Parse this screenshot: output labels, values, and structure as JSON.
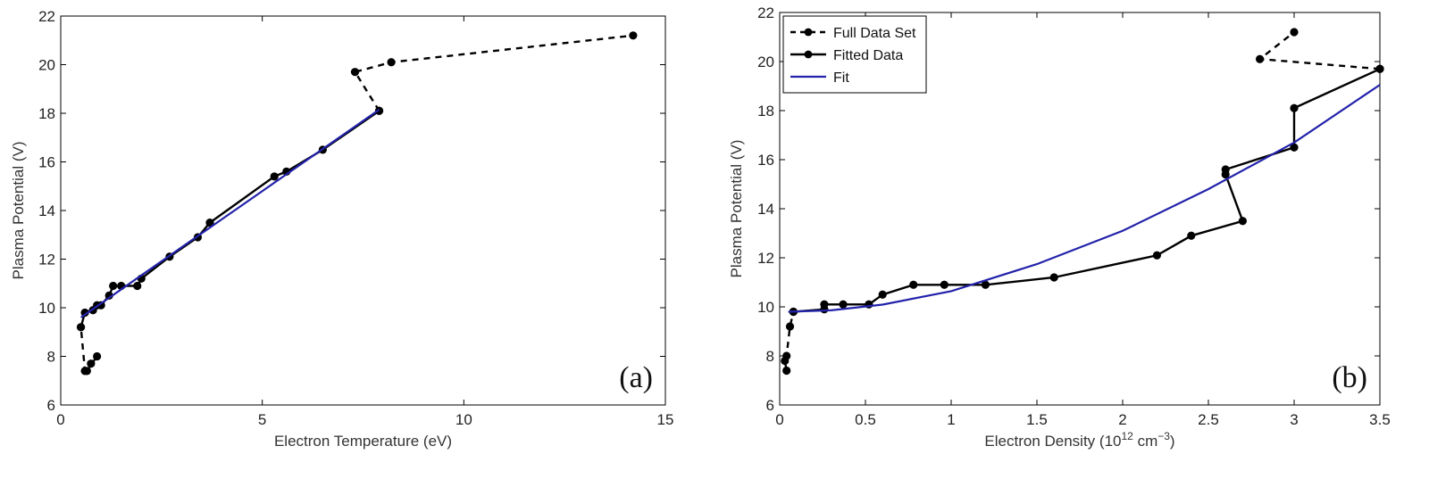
{
  "colors": {
    "data": "#000000",
    "fit": "#2222aa",
    "frame": "#000000"
  },
  "chart_data": [
    {
      "type": "line",
      "panel_label": "(a)",
      "xlabel": "Electron Temperature (eV)",
      "ylabel": "Plasma Potential (V)",
      "xlim": [
        0,
        15
      ],
      "ylim": [
        6,
        22
      ],
      "xticks": [
        "0",
        "5",
        "10",
        "15"
      ],
      "yticks": [
        "6",
        "8",
        "10",
        "12",
        "14",
        "16",
        "18",
        "20",
        "22"
      ],
      "grid": false,
      "series": [
        {
          "style": "dashed-markers",
          "x": [
            0.65,
            0.9,
            0.75,
            0.6,
            0.5
          ],
          "y": [
            7.4,
            8.0,
            7.7,
            7.4,
            9.2
          ]
        },
        {
          "style": "solid-markers",
          "x": [
            0.5,
            0.6,
            0.8,
            0.9,
            1.0,
            1.2,
            1.3,
            1.5,
            1.9,
            2.0,
            2.7,
            3.4,
            3.7,
            5.3,
            5.6,
            6.5,
            7.9
          ],
          "y": [
            9.2,
            9.8,
            9.9,
            10.1,
            10.1,
            10.5,
            10.9,
            10.9,
            10.9,
            11.2,
            12.1,
            12.9,
            13.5,
            15.4,
            15.6,
            16.5,
            18.1
          ]
        },
        {
          "style": "dashed-markers",
          "x": [
            7.9,
            7.3,
            8.2,
            14.2
          ],
          "y": [
            18.1,
            19.7,
            20.1,
            21.2
          ]
        },
        {
          "style": "fit-line",
          "x": [
            0.5,
            7.9
          ],
          "y": [
            9.6,
            18.15
          ]
        }
      ]
    },
    {
      "type": "line",
      "panel_label": "(b)",
      "xlabel": "Electron Density (10",
      "xlabel_sup1": "12",
      "xlabel_mid": " cm",
      "xlabel_sup2": "−3",
      "xlabel_end": ")",
      "ylabel": "Plasma Potential (V)",
      "xlim": [
        0,
        3.5
      ],
      "ylim": [
        6,
        22
      ],
      "xticks": [
        "0",
        "0.5",
        "1",
        "1.5",
        "2",
        "2.5",
        "3",
        "3.5"
      ],
      "yticks": [
        "6",
        "8",
        "10",
        "12",
        "14",
        "16",
        "18",
        "20",
        "22"
      ],
      "grid": false,
      "legend": {
        "placement": "top-left",
        "entries": [
          {
            "label": "Full Data Set",
            "style": "dashed-markers"
          },
          {
            "label": "Fitted Data",
            "style": "solid-markers"
          },
          {
            "label": "Fit",
            "style": "fit-line"
          }
        ]
      },
      "series": [
        {
          "style": "dashed-markers",
          "x": [
            0.04,
            0.03,
            0.04,
            0.06,
            0.08
          ],
          "y": [
            7.4,
            7.8,
            8.0,
            9.2,
            9.8
          ]
        },
        {
          "style": "solid-markers",
          "x": [
            0.08,
            0.26,
            0.26,
            0.37,
            0.52,
            0.6,
            0.78,
            0.96,
            1.2,
            1.6,
            2.2,
            2.4,
            2.7,
            2.6,
            2.6,
            3.0,
            3.0,
            3.5
          ],
          "y": [
            9.8,
            9.9,
            10.1,
            10.1,
            10.1,
            10.5,
            10.9,
            10.9,
            10.9,
            11.2,
            12.1,
            12.9,
            13.5,
            15.4,
            15.6,
            16.5,
            18.1,
            19.7
          ]
        },
        {
          "style": "dashed-markers",
          "x": [
            3.5,
            2.8,
            3.0
          ],
          "y": [
            19.7,
            20.1,
            21.2
          ]
        },
        {
          "style": "fit-line",
          "fit": "quadratic",
          "x": [
            0.05,
            0.3,
            0.6,
            1.0,
            1.5,
            2.0,
            2.5,
            3.0,
            3.5
          ],
          "y": [
            9.8,
            9.86,
            10.09,
            10.64,
            11.74,
            13.1,
            14.8,
            16.7,
            19.05
          ]
        }
      ]
    }
  ]
}
